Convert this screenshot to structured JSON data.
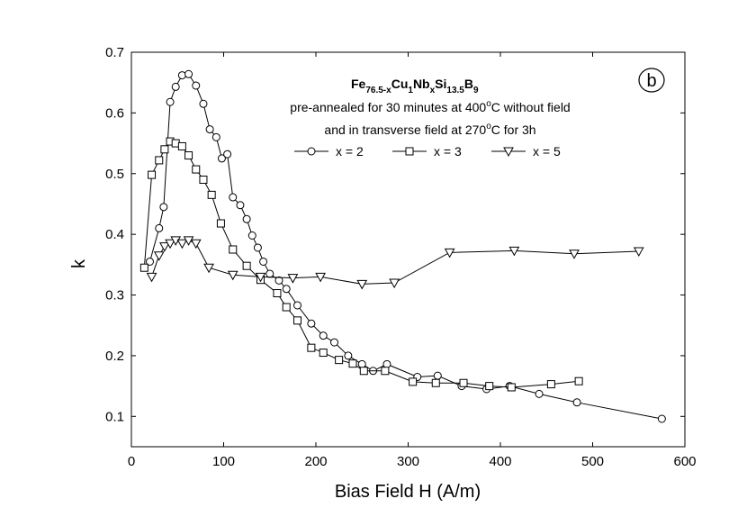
{
  "chart_data": {
    "type": "scatter",
    "xlabel": "Bias Field H (A/m)",
    "ylabel": "k",
    "xlim": [
      0,
      600
    ],
    "ylim": [
      0.05,
      0.7
    ],
    "xticks": [
      "0",
      "100",
      "200",
      "300",
      "400",
      "500",
      "600"
    ],
    "yticks": [
      "0.1",
      "0.2",
      "0.3",
      "0.4",
      "0.5",
      "0.6",
      "0.7"
    ],
    "panel_label": "b",
    "formula": {
      "parts": [
        {
          "text": "Fe",
          "sub": "76.5-x"
        },
        {
          "text": "Cu",
          "sub": "1"
        },
        {
          "text": "Nb",
          "sub": "x"
        },
        {
          "text": "Si",
          "sub": "13.5"
        },
        {
          "text": "B",
          "sub": "9"
        }
      ]
    },
    "annotation_line1": "pre-annealed for 30 minutes at 400",
    "annotation_line1_sup": "o",
    "annotation_line1_end": "C without field",
    "annotation_line2": "and in transverse field at 270",
    "annotation_line2_sup": "o",
    "annotation_line2_end": "C for 3h",
    "series": [
      {
        "name": "x = 2",
        "marker": "circle",
        "x": [
          20,
          30,
          35,
          42,
          48,
          55,
          62,
          70,
          78,
          85,
          92,
          98,
          104,
          110,
          118,
          125,
          131,
          137,
          143,
          150,
          160,
          168,
          180,
          195,
          208,
          220,
          235,
          250,
          262,
          277,
          310,
          332,
          358,
          385,
          410,
          442,
          483,
          575
        ],
        "y": [
          0.355,
          0.41,
          0.445,
          0.618,
          0.643,
          0.662,
          0.664,
          0.645,
          0.615,
          0.573,
          0.56,
          0.525,
          0.532,
          0.461,
          0.448,
          0.425,
          0.398,
          0.378,
          0.355,
          0.335,
          0.324,
          0.31,
          0.283,
          0.253,
          0.233,
          0.222,
          0.2,
          0.186,
          0.175,
          0.186,
          0.165,
          0.167,
          0.15,
          0.145,
          0.15,
          0.137,
          0.123,
          0.096
        ]
      },
      {
        "name": "x = 3",
        "marker": "square",
        "x": [
          14,
          22,
          30,
          36,
          42,
          48,
          55,
          62,
          70,
          78,
          87,
          97,
          110,
          125,
          140,
          158,
          168,
          180,
          195,
          208,
          225,
          240,
          252,
          275,
          305,
          330,
          360,
          388,
          412,
          455,
          485
        ],
        "y": [
          0.345,
          0.498,
          0.522,
          0.54,
          0.553,
          0.55,
          0.545,
          0.53,
          0.507,
          0.49,
          0.465,
          0.418,
          0.375,
          0.348,
          0.325,
          0.303,
          0.28,
          0.258,
          0.213,
          0.205,
          0.193,
          0.187,
          0.175,
          0.175,
          0.157,
          0.155,
          0.155,
          0.15,
          0.148,
          0.153,
          0.158
        ]
      },
      {
        "name": "x = 5",
        "marker": "triangle-down",
        "x": [
          22,
          30,
          36,
          42,
          48,
          55,
          62,
          70,
          84,
          110,
          140,
          175,
          205,
          250,
          285,
          345,
          415,
          480,
          550
        ],
        "y": [
          0.33,
          0.365,
          0.38,
          0.385,
          0.39,
          0.385,
          0.39,
          0.385,
          0.345,
          0.333,
          0.33,
          0.328,
          0.33,
          0.318,
          0.32,
          0.37,
          0.373,
          0.368,
          0.372
        ]
      }
    ]
  }
}
